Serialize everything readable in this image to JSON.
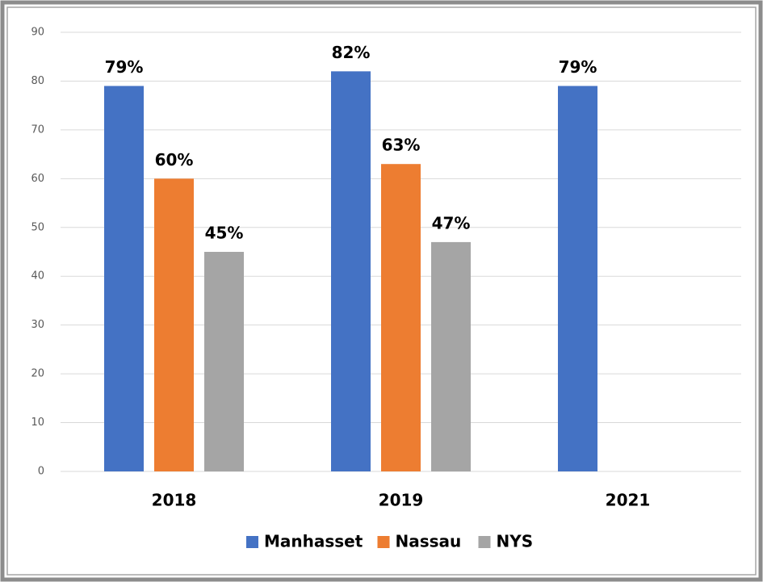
{
  "chart_data": {
    "type": "bar",
    "categories": [
      "2018",
      "2019",
      "2021"
    ],
    "series": [
      {
        "name": "Manhasset",
        "color": "#4472c4",
        "values": [
          79,
          82,
          79
        ],
        "value_labels": [
          "79%",
          "82%",
          "79%"
        ]
      },
      {
        "name": "Nassau",
        "color": "#ed7d31",
        "values": [
          60,
          63,
          null
        ],
        "value_labels": [
          "60%",
          "63%",
          null
        ]
      },
      {
        "name": "NYS",
        "color": "#a5a5a5",
        "values": [
          45,
          47,
          null
        ],
        "value_labels": [
          "45%",
          "47%",
          null
        ]
      }
    ],
    "ylim": [
      0,
      90
    ],
    "yticks": [
      0,
      10,
      20,
      30,
      40,
      50,
      60,
      70,
      80,
      90
    ],
    "grid": true,
    "legend": "bottom"
  }
}
